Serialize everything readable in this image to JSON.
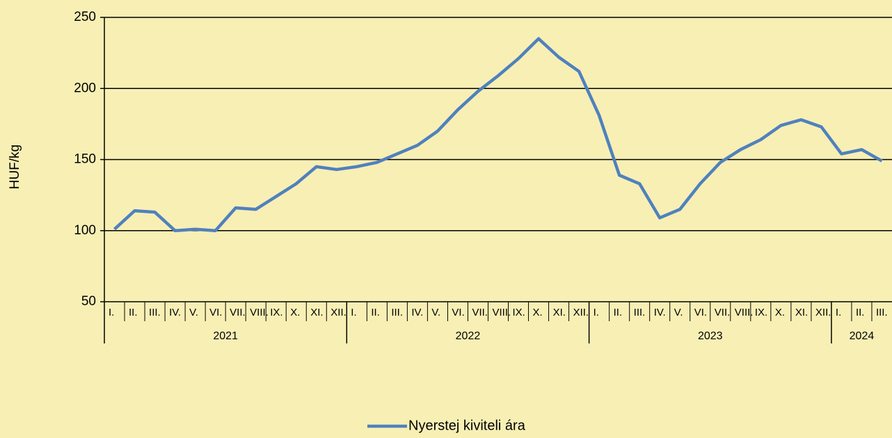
{
  "chart_data": {
    "type": "line",
    "ylabel": "HUF/kg",
    "groups": [
      {
        "label": "2021",
        "categories": [
          "I.",
          "II.",
          "III.",
          "IV.",
          "V.",
          "VI.",
          "VII.",
          "VIII.",
          "IX.",
          "X.",
          "XI.",
          "XII."
        ]
      },
      {
        "label": "2022",
        "categories": [
          "I.",
          "II.",
          "III.",
          "IV.",
          "V.",
          "VI.",
          "VII.",
          "VIII.",
          "IX.",
          "X.",
          "XI.",
          "XII."
        ]
      },
      {
        "label": "2023",
        "categories": [
          "I.",
          "II.",
          "III.",
          "IV.",
          "V.",
          "VI.",
          "VII.",
          "VIII.",
          "IX.",
          "X.",
          "XI.",
          "XII."
        ]
      },
      {
        "label": "2024",
        "categories": [
          "I.",
          "II.",
          "III."
        ]
      }
    ],
    "series": [
      {
        "name": "Nyerstej kiviteli ára",
        "color": "#4f81bd",
        "values": [
          101,
          114,
          113,
          100,
          101,
          100,
          116,
          115,
          124,
          133,
          145,
          143,
          145,
          148,
          154,
          160,
          170,
          185,
          198,
          209,
          221,
          235,
          222,
          212,
          181,
          139,
          133,
          109,
          115,
          133,
          148,
          157,
          164,
          174,
          178,
          173,
          154,
          157,
          149
        ]
      }
    ],
    "ylim": [
      50,
      250
    ],
    "yticks": [
      50,
      100,
      150,
      200,
      250
    ],
    "grid": true,
    "legend": "bottom"
  }
}
